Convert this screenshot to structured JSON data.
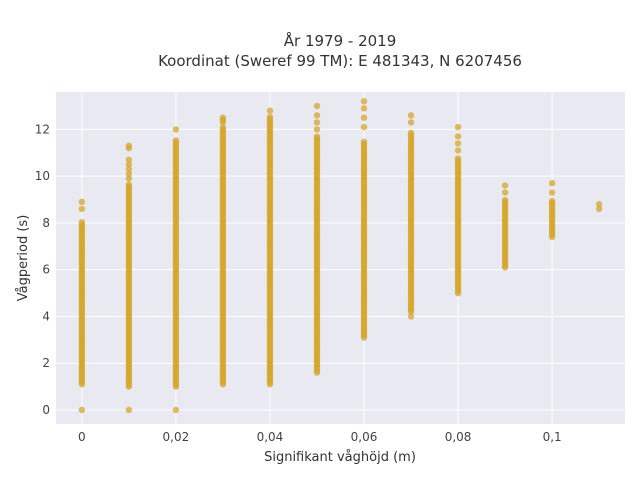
{
  "chart_data": {
    "type": "scatter",
    "title_line1": "År 1979 - 2019",
    "title_line2": "Koordinat (Sweref 99 TM): E 481343, N 6207456",
    "xlabel": "Signifikant våghöjd (m)",
    "ylabel": "Vågperiod (s)",
    "xlim": [
      -0.0055,
      0.1155
    ],
    "ylim": [
      -0.6,
      13.6
    ],
    "x_ticks": [
      0,
      0.02,
      0.04,
      0.06,
      0.08,
      0.1
    ],
    "x_tick_labels": [
      "0",
      "0,02",
      "0,04",
      "0,06",
      "0,08",
      "0,1"
    ],
    "y_ticks": [
      0,
      2,
      4,
      6,
      8,
      10,
      12
    ],
    "y_tick_labels": [
      "0",
      "2",
      "4",
      "6",
      "8",
      "10",
      "12"
    ],
    "grid": true,
    "marker_color": "#D4A52A",
    "background_color": "#E9E9F1",
    "columns": [
      {
        "x": 0.0,
        "ranges": [
          [
            1.1,
            8.1
          ]
        ],
        "points": [
          0,
          8.6,
          8.9
        ]
      },
      {
        "x": 0.01,
        "ranges": [
          [
            1.0,
            9.7
          ]
        ],
        "points": [
          0,
          9.9,
          10.1,
          10.3,
          10.5,
          10.7,
          11.2,
          11.3
        ]
      },
      {
        "x": 0.02,
        "ranges": [
          [
            1.0,
            11.6
          ]
        ],
        "points": [
          0,
          12.0
        ]
      },
      {
        "x": 0.03,
        "ranges": [
          [
            1.1,
            12.1
          ]
        ],
        "points": [
          12.3,
          12.4,
          12.5
        ]
      },
      {
        "x": 0.04,
        "ranges": [
          [
            1.1,
            12.6
          ]
        ],
        "points": [
          12.8
        ]
      },
      {
        "x": 0.05,
        "ranges": [
          [
            1.7,
            11.7
          ]
        ],
        "points": [
          1.6,
          12.0,
          12.3,
          12.6,
          13.0
        ]
      },
      {
        "x": 0.06,
        "ranges": [
          [
            3.1,
            11.5
          ]
        ],
        "points": [
          12.1,
          12.5,
          12.9,
          13.2
        ]
      },
      {
        "x": 0.07,
        "ranges": [
          [
            4.2,
            11.9
          ]
        ],
        "points": [
          4.0,
          12.3,
          12.6
        ]
      },
      {
        "x": 0.08,
        "ranges": [
          [
            5.0,
            10.8
          ]
        ],
        "points": [
          11.1,
          11.4,
          11.7,
          12.1
        ]
      },
      {
        "x": 0.09,
        "ranges": [
          [
            6.1,
            9.0
          ]
        ],
        "points": [
          9.3,
          9.6
        ]
      },
      {
        "x": 0.1,
        "ranges": [
          [
            7.5,
            9.0
          ]
        ],
        "points": [
          7.4,
          9.3,
          9.7
        ]
      },
      {
        "x": 0.11,
        "ranges": [],
        "points": [
          8.6,
          8.8
        ]
      }
    ]
  }
}
